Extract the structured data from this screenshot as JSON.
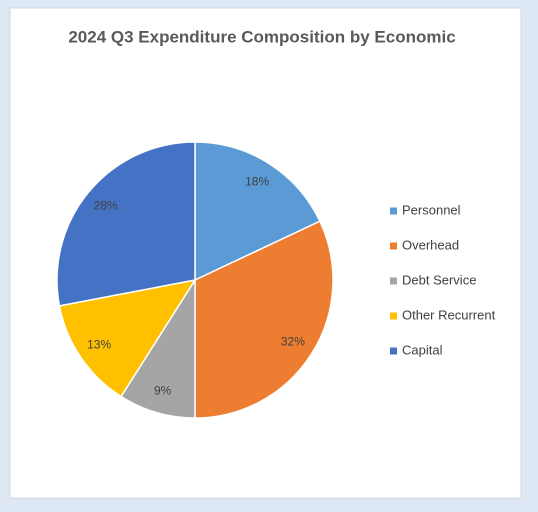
{
  "chart_data": {
    "type": "pie",
    "title": "2024 Q3 Expenditure Composition by Economic",
    "categories": [
      "Personnel",
      "Overhead",
      "Debt Service",
      "Other Recurrent",
      "Capital"
    ],
    "values": [
      18,
      32,
      9,
      13,
      28
    ],
    "value_labels": [
      "18%",
      "32%",
      "9%",
      "13%",
      "28%"
    ],
    "colors": [
      "#5b9bd5",
      "#ed7d31",
      "#a5a5a5",
      "#ffc000",
      "#4472c4"
    ],
    "legend": "right"
  }
}
